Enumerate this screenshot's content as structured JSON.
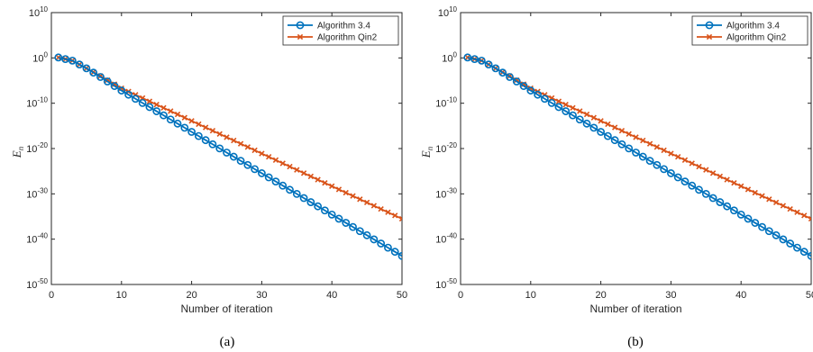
{
  "chart_data": [
    {
      "type": "line",
      "caption": "(a)",
      "xlabel": "Number of iteration",
      "ylabel_main": "E",
      "ylabel_sub": "n",
      "xlim": [
        0,
        50
      ],
      "ylim_log10": [
        -50,
        10
      ],
      "y_scale": "log",
      "x_ticks": [
        0,
        10,
        20,
        30,
        40,
        50
      ],
      "y_tick_exponents": [
        10,
        0,
        -10,
        -20,
        -30,
        -40,
        -50
      ],
      "y_tick_base": "10",
      "legend_position": "top-right",
      "series": [
        {
          "name": "Algorithm 3.4",
          "color": "#0072BD",
          "marker": "circle",
          "x_start": 1,
          "x_end": 50,
          "log10_y_start": 0.1,
          "log10_y_end": -43.7,
          "curve": [
            {
              "x": 1,
              "log10_y": 0.1
            },
            {
              "x": 3,
              "log10_y": -0.6
            },
            {
              "x": 5,
              "log10_y": -2.3
            },
            {
              "x": 7,
              "log10_y": -4.2
            },
            {
              "x": 10,
              "log10_y": -7.2
            }
          ]
        },
        {
          "name": "Algorithm Qin2",
          "color": "#D95319",
          "marker": "x",
          "x_start": 1,
          "x_end": 50,
          "log10_y_start": 0.1,
          "log10_y_end": -35.5,
          "curve": [
            {
              "x": 1,
              "log10_y": 0.1
            },
            {
              "x": 3,
              "log10_y": -0.6
            },
            {
              "x": 5,
              "log10_y": -2.3
            },
            {
              "x": 7,
              "log10_y": -4.0
            },
            {
              "x": 10,
              "log10_y": -6.7
            }
          ]
        }
      ]
    },
    {
      "type": "line",
      "caption": "(b)",
      "xlabel": "Number of iteration",
      "ylabel_main": "E",
      "ylabel_sub": "n",
      "xlim": [
        0,
        50
      ],
      "ylim_log10": [
        -50,
        10
      ],
      "y_scale": "log",
      "x_ticks": [
        0,
        10,
        20,
        30,
        40,
        50
      ],
      "y_tick_exponents": [
        10,
        0,
        -10,
        -20,
        -30,
        -40,
        -50
      ],
      "y_tick_base": "10",
      "legend_position": "top-right",
      "series": [
        {
          "name": "Algorithm 3.4",
          "color": "#0072BD",
          "marker": "circle",
          "x_start": 1,
          "x_end": 50,
          "log10_y_start": 0.1,
          "log10_y_end": -43.7,
          "curve": [
            {
              "x": 1,
              "log10_y": 0.1
            },
            {
              "x": 3,
              "log10_y": -0.6
            },
            {
              "x": 5,
              "log10_y": -2.3
            },
            {
              "x": 7,
              "log10_y": -4.2
            },
            {
              "x": 10,
              "log10_y": -7.2
            }
          ]
        },
        {
          "name": "Algorithm Qin2",
          "color": "#D95319",
          "marker": "x",
          "x_start": 1,
          "x_end": 50,
          "log10_y_start": 0.1,
          "log10_y_end": -35.5,
          "curve": [
            {
              "x": 1,
              "log10_y": 0.1
            },
            {
              "x": 3,
              "log10_y": -0.6
            },
            {
              "x": 5,
              "log10_y": -2.3
            },
            {
              "x": 7,
              "log10_y": -4.0
            },
            {
              "x": 10,
              "log10_y": -6.7
            }
          ]
        }
      ]
    }
  ]
}
